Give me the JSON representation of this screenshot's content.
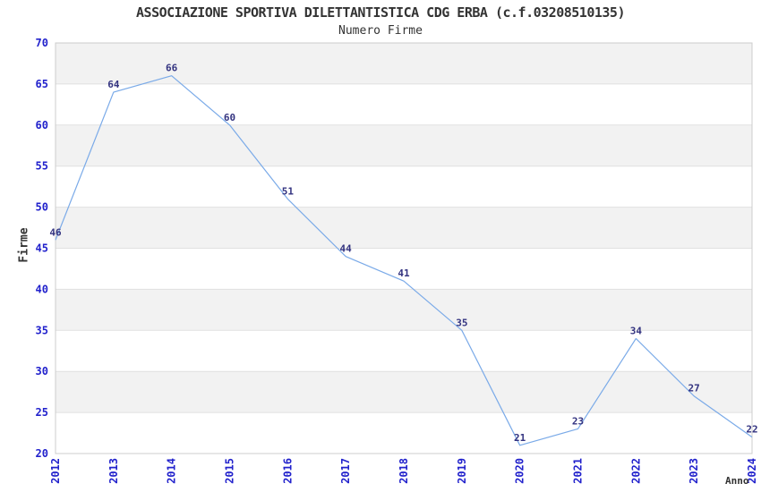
{
  "chart_data": {
    "type": "line",
    "title": "ASSOCIAZIONE SPORTIVA DILETTANTISTICA CDG ERBA (c.f.03208510135)",
    "subtitle": "Numero Firme",
    "xlabel": "Anno",
    "ylabel": "Firme",
    "categories": [
      "2012",
      "2013",
      "2014",
      "2015",
      "2016",
      "2017",
      "2018",
      "2019",
      "2020",
      "2021",
      "2022",
      "2023",
      "2024"
    ],
    "values": [
      46,
      64,
      66,
      60,
      51,
      44,
      41,
      35,
      21,
      23,
      34,
      27,
      22
    ],
    "ylim": [
      20,
      70
    ],
    "ytick_step": 5,
    "yticks": [
      20,
      25,
      30,
      35,
      40,
      45,
      50,
      55,
      60,
      65,
      70
    ],
    "grid": "horizontal",
    "banded_background": true,
    "legend": "none",
    "markers": "none",
    "data_labels": "above-points",
    "colors": {
      "line": "#7aaae8",
      "tick_label": "#2222cc",
      "value_label": "#333380",
      "band": "#f2f2f2",
      "grid": "#e0e0e0",
      "border": "#cccccc",
      "text": "#333333",
      "background": "#ffffff"
    }
  }
}
